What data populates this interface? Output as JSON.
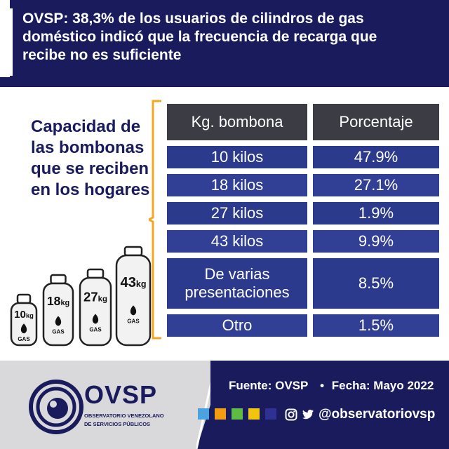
{
  "header": {
    "title": "OVSP: 38,3% de los usuarios de cilindros de gas doméstico indicó que la frecuencia de recarga que recibe no es suficiente"
  },
  "side_title": "Capacidad de las bombonas que se reciben en los hogares",
  "chart_data": {
    "type": "table",
    "columns": [
      "Kg. bombona",
      "Porcentaje"
    ],
    "rows": [
      {
        "label": "10 kilos",
        "value": "47.9%"
      },
      {
        "label": "18 kilos",
        "value": "27.1%"
      },
      {
        "label": "27 kilos",
        "value": "1.9%"
      },
      {
        "label": "43 kilos",
        "value": "9.9%"
      },
      {
        "label": "De varias presentaciones",
        "value": "8.5%"
      },
      {
        "label": "Otro",
        "value": "1.5%"
      }
    ]
  },
  "cylinders": [
    {
      "size": "10",
      "unit": "kg",
      "label": "GAS"
    },
    {
      "size": "18",
      "unit": "kg",
      "label": "GAS"
    },
    {
      "size": "27",
      "unit": "kg",
      "label": "GAS"
    },
    {
      "size": "43",
      "unit": "kg",
      "label": "GAS"
    }
  ],
  "footer": {
    "source_label": "Fuente: OVSP",
    "date_label": "Fecha: Mayo 2022",
    "separator": "•",
    "handle": "@observatoriovsp",
    "swatch_colors": [
      "#4aa3df",
      "#f39c12",
      "#5dbb46",
      "#f1c40f",
      "#2e3192"
    ]
  },
  "logo": {
    "word": "OVSP",
    "sub1": "OBSERVATORIO VENEZOLANO",
    "sub2": "DE SERVICIOS PÚBLICOS"
  },
  "colors": {
    "navy": "#1a1b5c",
    "table_header": "#3c3c44",
    "table_row": "#2c3a8e",
    "bracket": "#f5a623"
  }
}
